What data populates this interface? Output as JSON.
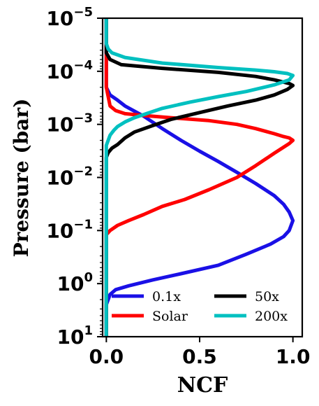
{
  "chart_data": {
    "type": "line",
    "title": "",
    "xlabel": "NCF",
    "ylabel": "Pressure (bar)",
    "xlim": [
      -0.02,
      1.05
    ],
    "ylim_log10": [
      1,
      -5
    ],
    "y_scale": "log",
    "y_inverted": true,
    "grid": false,
    "legend_placement": "lower-center",
    "x_ticks": [
      0,
      0.5,
      1
    ],
    "x_tick_labels": [
      "0.0",
      "0.5",
      "1.0"
    ],
    "y_ticks_log10": [
      -5,
      -4,
      -3,
      -2,
      -1,
      0,
      1
    ],
    "y_tick_labels": [
      {
        "base": "10",
        "exp": "−5"
      },
      {
        "base": "10",
        "exp": "−4"
      },
      {
        "base": "10",
        "exp": "−3"
      },
      {
        "base": "10",
        "exp": "−2"
      },
      {
        "base": "10",
        "exp": "−1"
      },
      {
        "base": "10",
        "exp": "0"
      },
      {
        "base": "10",
        "exp": "1"
      }
    ],
    "series": [
      {
        "name": "0.1x",
        "color": "#1a10e6",
        "points": [
          [
            0.0,
            1e-05
          ],
          [
            0.0,
            0.0001
          ],
          [
            0.0,
            0.0002
          ],
          [
            0.02,
            0.00028
          ],
          [
            0.06,
            0.00035
          ],
          [
            0.1,
            0.00045
          ],
          [
            0.2,
            0.0007
          ],
          [
            0.3,
            0.0012
          ],
          [
            0.4,
            0.002
          ],
          [
            0.5,
            0.0032
          ],
          [
            0.6,
            0.005
          ],
          [
            0.7,
            0.008
          ],
          [
            0.8,
            0.013
          ],
          [
            0.9,
            0.022
          ],
          [
            0.95,
            0.032
          ],
          [
            0.98,
            0.045
          ],
          [
            1.0,
            0.065
          ],
          [
            0.98,
            0.1
          ],
          [
            0.95,
            0.13
          ],
          [
            0.88,
            0.18
          ],
          [
            0.75,
            0.28
          ],
          [
            0.6,
            0.45
          ],
          [
            0.4,
            0.65
          ],
          [
            0.25,
            0.85
          ],
          [
            0.12,
            1.1
          ],
          [
            0.05,
            1.3
          ],
          [
            0.02,
            1.6
          ],
          [
            0.0,
            2.5
          ],
          [
            0.0,
            10
          ]
        ]
      },
      {
        "name": "Solar",
        "color": "#ff0000",
        "points": [
          [
            0.0,
            1e-05
          ],
          [
            0.0,
            5.5e-05
          ],
          [
            0.0,
            0.0001
          ],
          [
            0.0,
            0.0002
          ],
          [
            0.01,
            0.0003
          ],
          [
            0.02,
            0.00045
          ],
          [
            0.05,
            0.00055
          ],
          [
            0.1,
            0.00063
          ],
          [
            0.2,
            0.00068
          ],
          [
            0.35,
            0.00075
          ],
          [
            0.55,
            0.00085
          ],
          [
            0.7,
            0.001
          ],
          [
            0.8,
            0.0012
          ],
          [
            0.9,
            0.0015
          ],
          [
            0.95,
            0.0017
          ],
          [
            0.98,
            0.0018
          ],
          [
            1.0,
            0.002
          ],
          [
            0.98,
            0.0023
          ],
          [
            0.9,
            0.0035
          ],
          [
            0.8,
            0.006
          ],
          [
            0.7,
            0.01
          ],
          [
            0.55,
            0.017
          ],
          [
            0.42,
            0.026
          ],
          [
            0.3,
            0.035
          ],
          [
            0.2,
            0.05
          ],
          [
            0.12,
            0.065
          ],
          [
            0.06,
            0.08
          ],
          [
            0.02,
            0.1
          ],
          [
            0.0,
            0.12
          ],
          [
            0.0,
            0.15
          ],
          [
            0.0,
            10
          ]
        ]
      },
      {
        "name": "50x",
        "color": "#000000",
        "points": [
          [
            0.0,
            1e-05
          ],
          [
            0.0,
            4e-05
          ],
          [
            0.0,
            4.5e-05
          ],
          [
            0.02,
            6e-05
          ],
          [
            0.08,
            7.5e-05
          ],
          [
            0.3,
            8.8e-05
          ],
          [
            0.6,
            0.000105
          ],
          [
            0.8,
            0.000125
          ],
          [
            0.9,
            0.000145
          ],
          [
            0.95,
            0.00016
          ],
          [
            0.98,
            0.00017
          ],
          [
            1.0,
            0.000185
          ],
          [
            0.97,
            0.00022
          ],
          [
            0.9,
            0.00028
          ],
          [
            0.8,
            0.00035
          ],
          [
            0.65,
            0.00045
          ],
          [
            0.5,
            0.0006
          ],
          [
            0.35,
            0.0008
          ],
          [
            0.25,
            0.00105
          ],
          [
            0.15,
            0.0014
          ],
          [
            0.1,
            0.0018
          ],
          [
            0.06,
            0.0024
          ],
          [
            0.03,
            0.0028
          ],
          [
            0.01,
            0.0034
          ],
          [
            0.0,
            0.0042
          ],
          [
            0.0,
            10
          ]
        ]
      },
      {
        "name": "200x",
        "color": "#00c0c0",
        "points": [
          [
            0.0,
            1e-05
          ],
          [
            0.0,
            2e-05
          ],
          [
            0.0,
            3e-05
          ],
          [
            0.01,
            3.8e-05
          ],
          [
            0.03,
            4.5e-05
          ],
          [
            0.1,
            5.5e-05
          ],
          [
            0.3,
            7e-05
          ],
          [
            0.6,
            8.5e-05
          ],
          [
            0.8,
            9.5e-05
          ],
          [
            0.9,
            0.000102
          ],
          [
            0.97,
            0.00011
          ],
          [
            1.0,
            0.00012
          ],
          [
            0.98,
            0.000145
          ],
          [
            0.9,
            0.00018
          ],
          [
            0.75,
            0.00024
          ],
          [
            0.6,
            0.0003
          ],
          [
            0.45,
            0.00038
          ],
          [
            0.3,
            0.0005
          ],
          [
            0.22,
            0.00062
          ],
          [
            0.15,
            0.00075
          ],
          [
            0.1,
            0.0009
          ],
          [
            0.06,
            0.0011
          ],
          [
            0.04,
            0.0013
          ],
          [
            0.02,
            0.0016
          ],
          [
            0.01,
            0.002
          ],
          [
            0.0,
            0.0025
          ],
          [
            0.0,
            10
          ]
        ]
      }
    ],
    "legend": [
      {
        "label": "0.1x",
        "color": "#1a10e6"
      },
      {
        "label": "50x",
        "color": "#000000"
      },
      {
        "label": "Solar",
        "color": "#ff0000"
      },
      {
        "label": "200x",
        "color": "#00c0c0"
      }
    ]
  }
}
